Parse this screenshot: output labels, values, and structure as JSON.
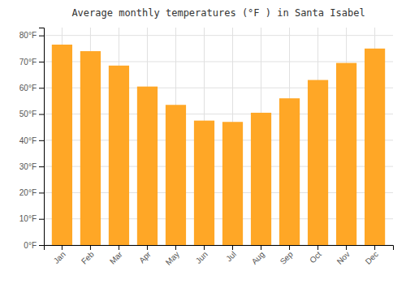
{
  "chart_data": {
    "type": "bar",
    "title": "Average monthly temperatures (°F ) in Santa Isabel",
    "categories": [
      "Jan",
      "Feb",
      "Mar",
      "Apr",
      "May",
      "Jun",
      "Jul",
      "Aug",
      "Sep",
      "Oct",
      "Nov",
      "Dec"
    ],
    "values": [
      76.5,
      74.0,
      68.5,
      60.5,
      53.5,
      47.5,
      47.0,
      50.5,
      56.0,
      63.0,
      69.5,
      75.0
    ],
    "color": "#FFA726",
    "ylim": [
      0,
      83
    ],
    "yticks": [
      {
        "value": 0,
        "label": "0°F"
      },
      {
        "value": 10,
        "label": "10°F"
      },
      {
        "value": 20,
        "label": "20°F"
      },
      {
        "value": 30,
        "label": "30°F"
      },
      {
        "value": 40,
        "label": "40°F"
      },
      {
        "value": 50,
        "label": "50°F"
      },
      {
        "value": 60,
        "label": "60°F"
      },
      {
        "value": 70,
        "label": "70°F"
      },
      {
        "value": 80,
        "label": "80°F"
      }
    ],
    "grid": true
  }
}
